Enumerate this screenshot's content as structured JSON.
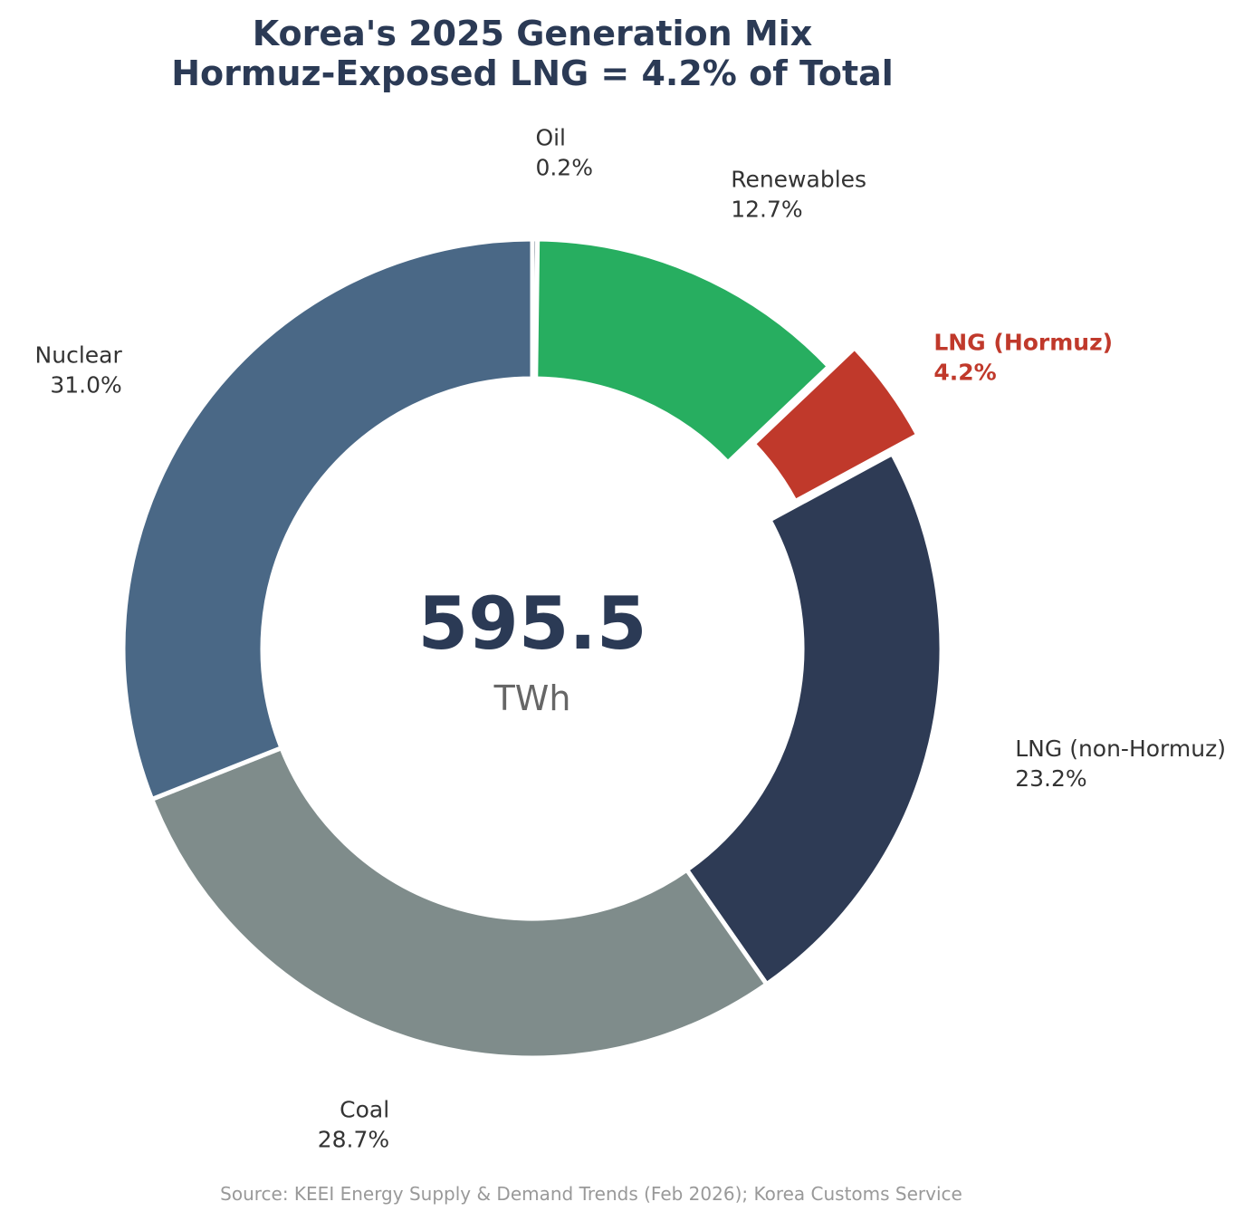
{
  "chart_data": {
    "type": "pie",
    "variant": "donut",
    "title_line1": "Korea's 2025 Generation Mix",
    "title_line2": "Hormuz-Exposed LNG = 4.2% of Total",
    "center_value": "595.5",
    "center_unit": "TWh",
    "source": "Source: KEEI Energy Supply & Demand Trends (Feb 2026); Korea Customs Service",
    "slices": [
      {
        "name": "Oil",
        "value": 0.2,
        "label": "0.2%",
        "color": "#6e7d8c",
        "highlight": false,
        "exploded": false
      },
      {
        "name": "Renewables",
        "value": 12.7,
        "label": "12.7%",
        "color": "#27ae60",
        "highlight": false,
        "exploded": false
      },
      {
        "name": "LNG (Hormuz)",
        "value": 4.2,
        "label": "4.2%",
        "color": "#c0392b",
        "highlight": true,
        "exploded": true
      },
      {
        "name": "LNG (non-Hormuz)",
        "value": 23.2,
        "label": "23.2%",
        "color": "#2e3b55",
        "highlight": false,
        "exploded": false
      },
      {
        "name": "Coal",
        "value": 28.7,
        "label": "28.7%",
        "color": "#7f8c8b",
        "highlight": false,
        "exploded": false
      },
      {
        "name": "Nuclear",
        "value": 31.0,
        "label": "31.0%",
        "color": "#4a6886",
        "highlight": false,
        "exploded": false
      }
    ],
    "start_angle_deg": 90,
    "direction": "clockwise"
  },
  "colors": {
    "title": "#2b3a55",
    "label": "#333333",
    "highlight_label": "#c0392b",
    "center_value": "#2b3a55",
    "center_unit": "#666666",
    "source": "#999999",
    "background": "#ffffff"
  }
}
